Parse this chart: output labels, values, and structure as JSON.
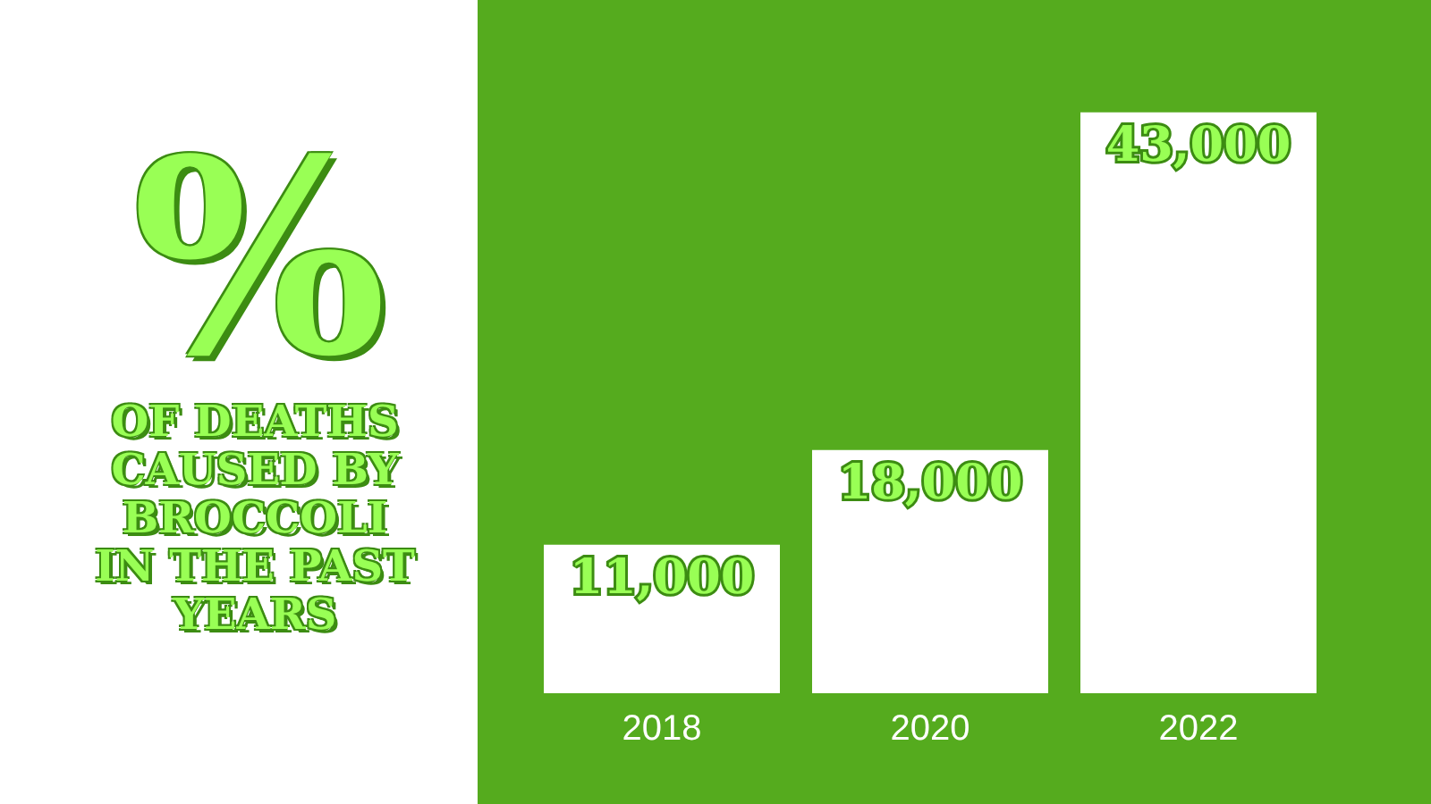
{
  "chart_data": {
    "type": "bar",
    "title": "%",
    "subtitle": "OF DEATHS CAUSED BY BROCCOLI IN THE PAST YEARS",
    "categories": [
      "2018",
      "2020",
      "2022"
    ],
    "values": [
      11000,
      18000,
      43000
    ],
    "value_labels": [
      "11,000",
      "18,000",
      "43,000"
    ],
    "color": "#ffffff"
  }
}
